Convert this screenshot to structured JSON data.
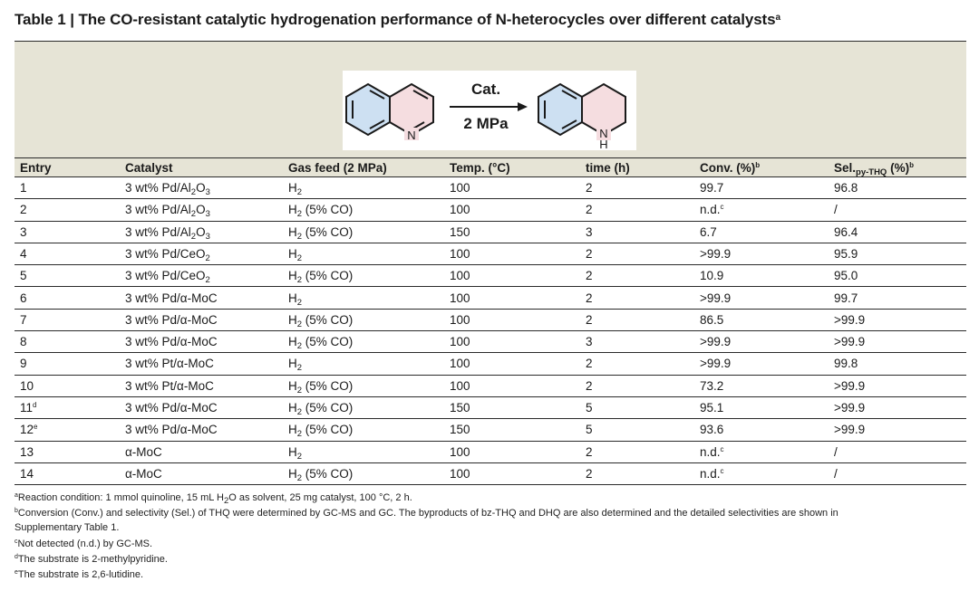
{
  "title": {
    "text": "Table 1 | The CO-resistant catalytic hydrogenation performance of N-heterocycles over different catalysts",
    "mark": "a"
  },
  "scheme": {
    "arrow_top": "Cat.",
    "arrow_bottom": "2 MPa",
    "reactant_N": "N",
    "product_N": "N",
    "product_H": "H",
    "colors": {
      "benzene_ring": "#cde0f2",
      "pyridine_ring": "#f5dde0",
      "bond": "#1a1a1a"
    }
  },
  "headers": {
    "entry": "Entry",
    "catalyst": "Catalyst",
    "gas_feed": "Gas feed (2 MPa)",
    "temp": "Temp. (°C)",
    "time": "time (h)",
    "conv": "Conv. (%)",
    "conv_mark": "b",
    "sel": "Sel.",
    "sel_sub": "py-THQ",
    "sel_unit": "(%)",
    "sel_mark": "b"
  },
  "rows": [
    {
      "entry": "1",
      "entry_mark": "",
      "cat_pre": "3 wt% Pd/Al",
      "cat_s1": "2",
      "cat_mid": "O",
      "cat_s2": "3",
      "gas": "H",
      "gas_sub": "2",
      "gas_rest": "",
      "temp": "100",
      "time": "2",
      "conv": "99.7",
      "conv_mark": "",
      "sel": "96.8"
    },
    {
      "entry": "2",
      "entry_mark": "",
      "cat_pre": "3 wt% Pd/Al",
      "cat_s1": "2",
      "cat_mid": "O",
      "cat_s2": "3",
      "gas": "H",
      "gas_sub": "2",
      "gas_rest": " (5% CO)",
      "temp": "100",
      "time": "2",
      "conv": "n.d.",
      "conv_mark": "c",
      "sel": "/"
    },
    {
      "entry": "3",
      "entry_mark": "",
      "cat_pre": "3 wt% Pd/Al",
      "cat_s1": "2",
      "cat_mid": "O",
      "cat_s2": "3",
      "gas": "H",
      "gas_sub": "2",
      "gas_rest": " (5% CO)",
      "temp": "150",
      "time": "3",
      "conv": "6.7",
      "conv_mark": "",
      "sel": "96.4"
    },
    {
      "entry": "4",
      "entry_mark": "",
      "cat_pre": "3 wt% Pd/CeO",
      "cat_s1": "2",
      "cat_mid": "",
      "cat_s2": "",
      "gas": "H",
      "gas_sub": "2",
      "gas_rest": "",
      "temp": "100",
      "time": "2",
      "conv": ">99.9",
      "conv_mark": "",
      "sel": "95.9"
    },
    {
      "entry": "5",
      "entry_mark": "",
      "cat_pre": "3 wt% Pd/CeO",
      "cat_s1": "2",
      "cat_mid": "",
      "cat_s2": "",
      "gas": "H",
      "gas_sub": "2",
      "gas_rest": " (5% CO)",
      "temp": "100",
      "time": "2",
      "conv": "10.9",
      "conv_mark": "",
      "sel": "95.0"
    },
    {
      "entry": "6",
      "entry_mark": "",
      "cat_pre": "3 wt% Pd/α-MoC",
      "cat_s1": "",
      "cat_mid": "",
      "cat_s2": "",
      "gas": "H",
      "gas_sub": "2",
      "gas_rest": "",
      "temp": "100",
      "time": "2",
      "conv": ">99.9",
      "conv_mark": "",
      "sel": "99.7"
    },
    {
      "entry": "7",
      "entry_mark": "",
      "cat_pre": "3 wt% Pd/α-MoC",
      "cat_s1": "",
      "cat_mid": "",
      "cat_s2": "",
      "gas": "H",
      "gas_sub": "2",
      "gas_rest": " (5% CO)",
      "temp": "100",
      "time": "2",
      "conv": "86.5",
      "conv_mark": "",
      "sel": ">99.9"
    },
    {
      "entry": "8",
      "entry_mark": "",
      "cat_pre": "3 wt% Pd/α-MoC",
      "cat_s1": "",
      "cat_mid": "",
      "cat_s2": "",
      "gas": "H",
      "gas_sub": "2",
      "gas_rest": " (5% CO)",
      "temp": "100",
      "time": "3",
      "conv": ">99.9",
      "conv_mark": "",
      "sel": ">99.9"
    },
    {
      "entry": "9",
      "entry_mark": "",
      "cat_pre": "3 wt% Pt/α-MoC",
      "cat_s1": "",
      "cat_mid": "",
      "cat_s2": "",
      "gas": "H",
      "gas_sub": "2",
      "gas_rest": "",
      "temp": "100",
      "time": "2",
      "conv": ">99.9",
      "conv_mark": "",
      "sel": "99.8"
    },
    {
      "entry": "10",
      "entry_mark": "",
      "cat_pre": "3 wt% Pt/α-MoC",
      "cat_s1": "",
      "cat_mid": "",
      "cat_s2": "",
      "gas": "H",
      "gas_sub": "2",
      "gas_rest": " (5% CO)",
      "temp": "100",
      "time": "2",
      "conv": "73.2",
      "conv_mark": "",
      "sel": ">99.9"
    },
    {
      "entry": "11",
      "entry_mark": "d",
      "cat_pre": "3 wt% Pd/α-MoC",
      "cat_s1": "",
      "cat_mid": "",
      "cat_s2": "",
      "gas": "H",
      "gas_sub": "2",
      "gas_rest": " (5% CO)",
      "temp": "150",
      "time": "5",
      "conv": "95.1",
      "conv_mark": "",
      "sel": ">99.9"
    },
    {
      "entry": "12",
      "entry_mark": "e",
      "cat_pre": "3 wt% Pd/α-MoC",
      "cat_s1": "",
      "cat_mid": "",
      "cat_s2": "",
      "gas": "H",
      "gas_sub": "2",
      "gas_rest": " (5% CO)",
      "temp": "150",
      "time": "5",
      "conv": "93.6",
      "conv_mark": "",
      "sel": ">99.9"
    },
    {
      "entry": "13",
      "entry_mark": "",
      "cat_pre": "α-MoC",
      "cat_s1": "",
      "cat_mid": "",
      "cat_s2": "",
      "gas": "H",
      "gas_sub": "2",
      "gas_rest": "",
      "temp": "100",
      "time": "2",
      "conv": "n.d.",
      "conv_mark": "c",
      "sel": "/"
    },
    {
      "entry": "14",
      "entry_mark": "",
      "cat_pre": "α-MoC",
      "cat_s1": "",
      "cat_mid": "",
      "cat_s2": "",
      "gas": "H",
      "gas_sub": "2",
      "gas_rest": " (5% CO)",
      "temp": "100",
      "time": "2",
      "conv": "n.d.",
      "conv_mark": "c",
      "sel": "/"
    }
  ],
  "footnotes": {
    "a": {
      "mark": "a",
      "pre": "Reaction condition: 1 mmol quinoline, 15 mL H",
      "sub": "2",
      "post": "O as solvent, 25 mg catalyst, 100 °C, 2 h."
    },
    "b": {
      "mark": "b",
      "line1": "Conversion (Conv.) and selectivity (Sel.) of THQ were determined by GC-MS and GC. The byproducts of bz-THQ and DHQ are also determined and the detailed selectivities are shown in",
      "line2": "Supplementary Table 1."
    },
    "c": {
      "mark": "c",
      "text": "Not detected (n.d.) by GC-MS."
    },
    "d": {
      "mark": "d",
      "text": "The substrate is 2-methylpyridine."
    },
    "e": {
      "mark": "e",
      "text": "The substrate is 2,6-lutidine."
    }
  }
}
